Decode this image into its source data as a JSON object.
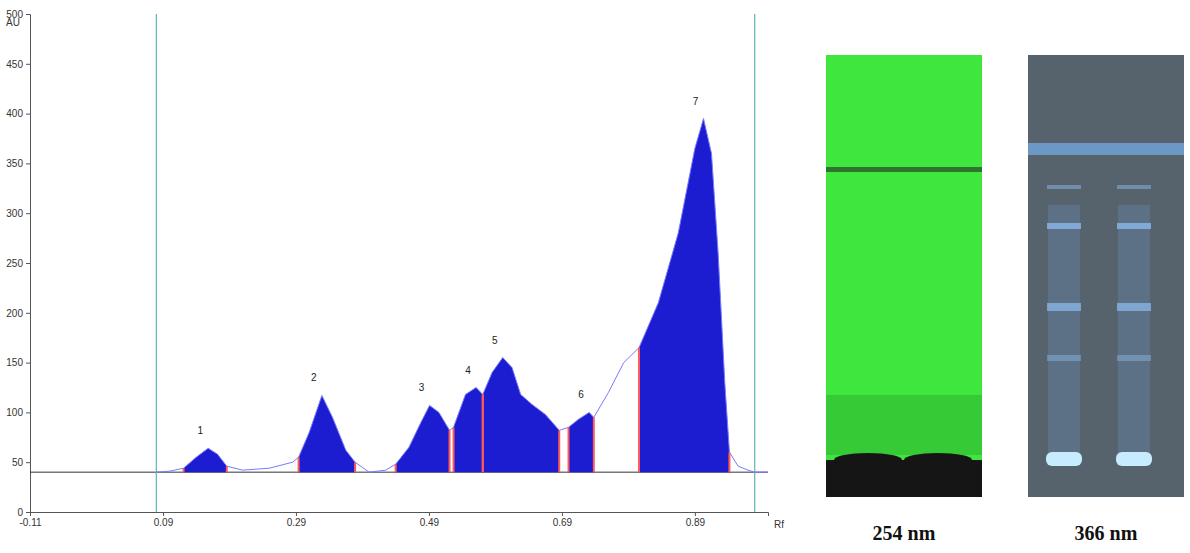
{
  "chart_data": {
    "type": "line",
    "y_label": "AU",
    "x_label": "Rf",
    "x": [
      0.08,
      0.1,
      0.121,
      0.14,
      0.158,
      0.172,
      0.186,
      0.21,
      0.25,
      0.285,
      0.294,
      0.31,
      0.329,
      0.345,
      0.365,
      0.379,
      0.4,
      0.425,
      0.44,
      0.46,
      0.478,
      0.491,
      0.505,
      0.521,
      0.527,
      0.545,
      0.561,
      0.571,
      0.585,
      0.601,
      0.615,
      0.628,
      0.645,
      0.665,
      0.686,
      0.7,
      0.715,
      0.731,
      0.738,
      0.76,
      0.783,
      0.806,
      0.835,
      0.865,
      0.89,
      0.903,
      0.915,
      0.925,
      0.935,
      0.942,
      0.955,
      0.97,
      0.98,
      1.0
    ],
    "values": [
      40,
      41,
      44,
      55,
      64,
      58,
      46,
      42,
      44,
      50,
      55,
      80,
      117,
      95,
      62,
      50,
      40,
      42,
      48,
      65,
      90,
      107,
      100,
      82,
      85,
      118,
      125,
      118,
      140,
      155,
      145,
      118,
      108,
      98,
      82,
      85,
      93,
      100,
      95,
      120,
      150,
      165,
      210,
      280,
      365,
      395,
      360,
      260,
      130,
      60,
      46,
      42,
      40,
      40
    ],
    "color": "#1c1cd0",
    "xlim": [
      -0.11,
      1.0
    ],
    "ylim": [
      0,
      500
    ],
    "xticks": [
      -0.11,
      0.09,
      0.29,
      0.49,
      0.69,
      0.89
    ],
    "yticks": [
      0,
      50,
      100,
      150,
      200,
      250,
      300,
      350,
      400,
      450,
      500
    ],
    "baseline": 40,
    "reference_lines": [
      0.08,
      0.98
    ],
    "peaks": [
      {
        "label": "1",
        "start": 0.121,
        "end": 0.186,
        "apex": 0.158
      },
      {
        "label": "2",
        "start": 0.294,
        "end": 0.379,
        "apex": 0.329
      },
      {
        "label": "3",
        "start": 0.44,
        "end": 0.521,
        "apex": 0.491
      },
      {
        "label": "4",
        "start": 0.527,
        "end": 0.571,
        "apex": 0.561
      },
      {
        "label": "5",
        "start": 0.571,
        "end": 0.686,
        "apex": 0.601
      },
      {
        "label": "6",
        "start": 0.7,
        "end": 0.738,
        "apex": 0.731
      },
      {
        "label": "7",
        "start": 0.806,
        "end": 0.942,
        "apex": 0.903
      }
    ]
  },
  "images": [
    {
      "label": "254 nm"
    },
    {
      "label": "366 nm"
    }
  ]
}
